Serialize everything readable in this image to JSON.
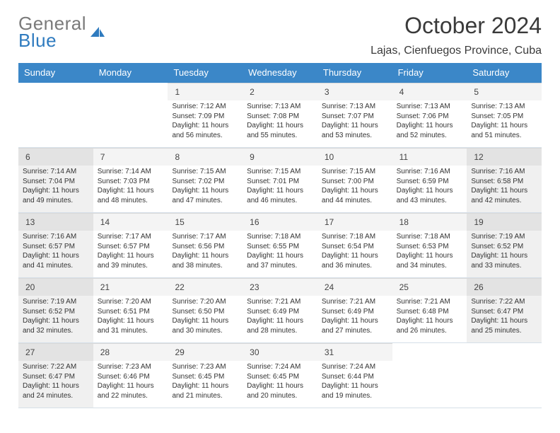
{
  "logo": {
    "word1": "General",
    "word2": "Blue"
  },
  "title": "October 2024",
  "location": "Lajas, Cienfuegos Province, Cuba",
  "colors": {
    "header_bg": "#3b87c8",
    "header_text": "#ffffff",
    "shaded": "#f0f0f0",
    "daybar": "#f4f4f4",
    "text": "#333333"
  },
  "weekdays": [
    "Sunday",
    "Monday",
    "Tuesday",
    "Wednesday",
    "Thursday",
    "Friday",
    "Saturday"
  ],
  "weeks": [
    [
      {
        "n": "",
        "empty": true
      },
      {
        "n": "",
        "empty": true
      },
      {
        "n": "1",
        "sr": "7:12 AM",
        "ss": "7:09 PM",
        "dl": "11 hours and 56 minutes."
      },
      {
        "n": "2",
        "sr": "7:13 AM",
        "ss": "7:08 PM",
        "dl": "11 hours and 55 minutes."
      },
      {
        "n": "3",
        "sr": "7:13 AM",
        "ss": "7:07 PM",
        "dl": "11 hours and 53 minutes."
      },
      {
        "n": "4",
        "sr": "7:13 AM",
        "ss": "7:06 PM",
        "dl": "11 hours and 52 minutes."
      },
      {
        "n": "5",
        "sr": "7:13 AM",
        "ss": "7:05 PM",
        "dl": "11 hours and 51 minutes."
      }
    ],
    [
      {
        "n": "6",
        "sr": "7:14 AM",
        "ss": "7:04 PM",
        "dl": "11 hours and 49 minutes.",
        "shaded": true
      },
      {
        "n": "7",
        "sr": "7:14 AM",
        "ss": "7:03 PM",
        "dl": "11 hours and 48 minutes."
      },
      {
        "n": "8",
        "sr": "7:15 AM",
        "ss": "7:02 PM",
        "dl": "11 hours and 47 minutes."
      },
      {
        "n": "9",
        "sr": "7:15 AM",
        "ss": "7:01 PM",
        "dl": "11 hours and 46 minutes."
      },
      {
        "n": "10",
        "sr": "7:15 AM",
        "ss": "7:00 PM",
        "dl": "11 hours and 44 minutes."
      },
      {
        "n": "11",
        "sr": "7:16 AM",
        "ss": "6:59 PM",
        "dl": "11 hours and 43 minutes."
      },
      {
        "n": "12",
        "sr": "7:16 AM",
        "ss": "6:58 PM",
        "dl": "11 hours and 42 minutes.",
        "shaded": true
      }
    ],
    [
      {
        "n": "13",
        "sr": "7:16 AM",
        "ss": "6:57 PM",
        "dl": "11 hours and 41 minutes.",
        "shaded": true
      },
      {
        "n": "14",
        "sr": "7:17 AM",
        "ss": "6:57 PM",
        "dl": "11 hours and 39 minutes."
      },
      {
        "n": "15",
        "sr": "7:17 AM",
        "ss": "6:56 PM",
        "dl": "11 hours and 38 minutes."
      },
      {
        "n": "16",
        "sr": "7:18 AM",
        "ss": "6:55 PM",
        "dl": "11 hours and 37 minutes."
      },
      {
        "n": "17",
        "sr": "7:18 AM",
        "ss": "6:54 PM",
        "dl": "11 hours and 36 minutes."
      },
      {
        "n": "18",
        "sr": "7:18 AM",
        "ss": "6:53 PM",
        "dl": "11 hours and 34 minutes."
      },
      {
        "n": "19",
        "sr": "7:19 AM",
        "ss": "6:52 PM",
        "dl": "11 hours and 33 minutes.",
        "shaded": true
      }
    ],
    [
      {
        "n": "20",
        "sr": "7:19 AM",
        "ss": "6:52 PM",
        "dl": "11 hours and 32 minutes.",
        "shaded": true
      },
      {
        "n": "21",
        "sr": "7:20 AM",
        "ss": "6:51 PM",
        "dl": "11 hours and 31 minutes."
      },
      {
        "n": "22",
        "sr": "7:20 AM",
        "ss": "6:50 PM",
        "dl": "11 hours and 30 minutes."
      },
      {
        "n": "23",
        "sr": "7:21 AM",
        "ss": "6:49 PM",
        "dl": "11 hours and 28 minutes."
      },
      {
        "n": "24",
        "sr": "7:21 AM",
        "ss": "6:49 PM",
        "dl": "11 hours and 27 minutes."
      },
      {
        "n": "25",
        "sr": "7:21 AM",
        "ss": "6:48 PM",
        "dl": "11 hours and 26 minutes."
      },
      {
        "n": "26",
        "sr": "7:22 AM",
        "ss": "6:47 PM",
        "dl": "11 hours and 25 minutes.",
        "shaded": true
      }
    ],
    [
      {
        "n": "27",
        "sr": "7:22 AM",
        "ss": "6:47 PM",
        "dl": "11 hours and 24 minutes.",
        "shaded": true
      },
      {
        "n": "28",
        "sr": "7:23 AM",
        "ss": "6:46 PM",
        "dl": "11 hours and 22 minutes."
      },
      {
        "n": "29",
        "sr": "7:23 AM",
        "ss": "6:45 PM",
        "dl": "11 hours and 21 minutes."
      },
      {
        "n": "30",
        "sr": "7:24 AM",
        "ss": "6:45 PM",
        "dl": "11 hours and 20 minutes."
      },
      {
        "n": "31",
        "sr": "7:24 AM",
        "ss": "6:44 PM",
        "dl": "11 hours and 19 minutes."
      },
      {
        "n": "",
        "empty": true
      },
      {
        "n": "",
        "empty": true
      }
    ]
  ],
  "labels": {
    "sunrise": "Sunrise:",
    "sunset": "Sunset:",
    "daylight": "Daylight:"
  }
}
